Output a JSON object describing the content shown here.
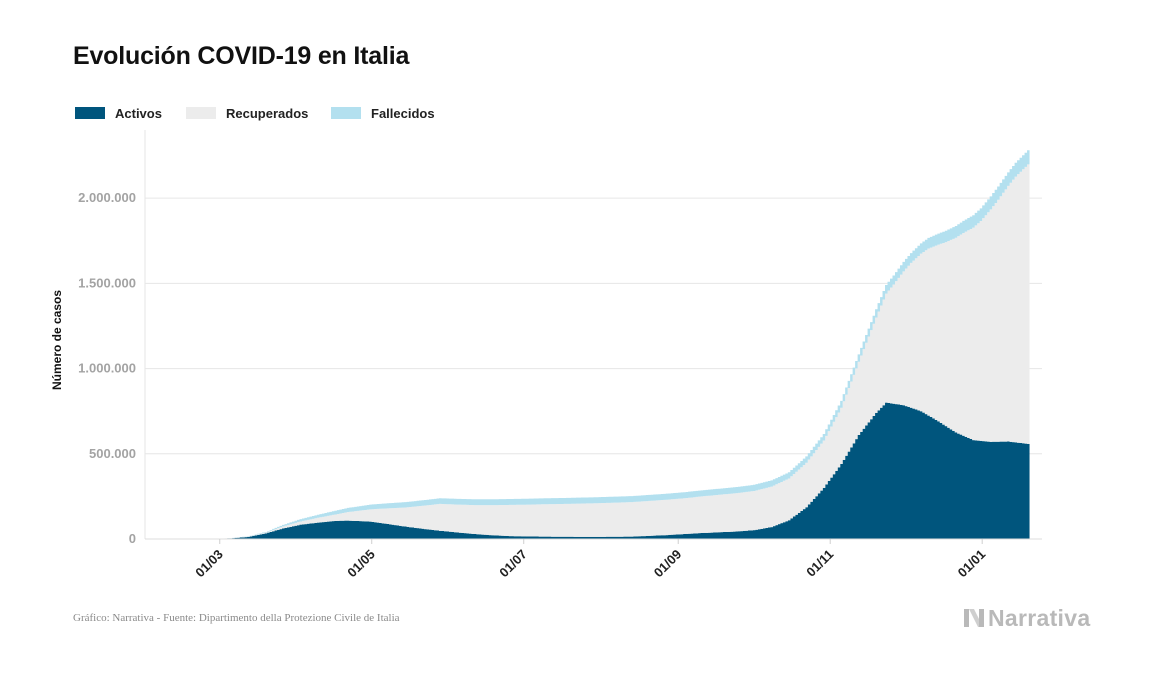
{
  "title": "Evolución COVID-19 en Italia",
  "legend": [
    {
      "label": "Activos",
      "color": "#00557d"
    },
    {
      "label": "Recuperados",
      "color": "#ececec"
    },
    {
      "label": "Fallecidos",
      "color": "#b3e0ef"
    }
  ],
  "footer": "Gráfico: Narrativa - Fuente: Dipartimento della Protezione Civile de Italia",
  "logo_text": "Narrativa",
  "chart_data": {
    "type": "area",
    "stacked": true,
    "ylabel": "Número de casos",
    "ylim": [
      0,
      2400000
    ],
    "yticks": [
      0,
      500000,
      1000000,
      1500000,
      2000000
    ],
    "ytick_labels": [
      "0",
      "500.000",
      "1.000.000",
      "1.500.000",
      "2.000.000"
    ],
    "xlim": [
      "2020-01-31",
      "2021-01-25"
    ],
    "xticks": [
      "2020-03-01",
      "2020-05-01",
      "2020-07-01",
      "2020-09-01",
      "2020-11-01",
      "2021-01-01"
    ],
    "xtick_labels": [
      "01/03",
      "01/05",
      "01/07",
      "01/09",
      "01/11",
      "01/01"
    ],
    "legend_position": "top-left",
    "grid": true,
    "series": [
      {
        "name": "Activos",
        "color": "#00557d",
        "points": [
          [
            "2020-02-20",
            0
          ],
          [
            "2020-02-27",
            1000
          ],
          [
            "2020-03-05",
            4000
          ],
          [
            "2020-03-12",
            12000
          ],
          [
            "2020-03-19",
            33000
          ],
          [
            "2020-03-26",
            62000
          ],
          [
            "2020-04-02",
            84000
          ],
          [
            "2020-04-09",
            96000
          ],
          [
            "2020-04-16",
            106000
          ],
          [
            "2020-04-21",
            108000
          ],
          [
            "2020-04-30",
            102000
          ],
          [
            "2020-05-07",
            88000
          ],
          [
            "2020-05-14",
            73000
          ],
          [
            "2020-05-21",
            60000
          ],
          [
            "2020-05-28",
            48000
          ],
          [
            "2020-06-04",
            38000
          ],
          [
            "2020-06-11",
            29000
          ],
          [
            "2020-06-18",
            22000
          ],
          [
            "2020-06-25",
            17000
          ],
          [
            "2020-07-02",
            15000
          ],
          [
            "2020-07-16",
            13000
          ],
          [
            "2020-07-30",
            12500
          ],
          [
            "2020-08-13",
            14000
          ],
          [
            "2020-08-27",
            23000
          ],
          [
            "2020-09-10",
            35000
          ],
          [
            "2020-09-24",
            44000
          ],
          [
            "2020-10-01",
            52000
          ],
          [
            "2020-10-08",
            70000
          ],
          [
            "2020-10-15",
            110000
          ],
          [
            "2020-10-22",
            186000
          ],
          [
            "2020-10-29",
            300000
          ],
          [
            "2020-11-05",
            440000
          ],
          [
            "2020-11-12",
            610000
          ],
          [
            "2020-11-19",
            740000
          ],
          [
            "2020-11-23",
            800000
          ],
          [
            "2020-11-30",
            785000
          ],
          [
            "2020-12-07",
            750000
          ],
          [
            "2020-12-14",
            690000
          ],
          [
            "2020-12-21",
            625000
          ],
          [
            "2020-12-28",
            580000
          ],
          [
            "2021-01-04",
            570000
          ],
          [
            "2021-01-11",
            572000
          ],
          [
            "2021-01-19",
            558000
          ]
        ]
      },
      {
        "name": "Recuperados",
        "color": "#ececec",
        "points": [
          [
            "2020-02-20",
            0
          ],
          [
            "2020-03-05",
            500
          ],
          [
            "2020-03-19",
            5000
          ],
          [
            "2020-04-02",
            19000
          ],
          [
            "2020-04-16",
            38000
          ],
          [
            "2020-04-30",
            72000
          ],
          [
            "2020-05-14",
            112000
          ],
          [
            "2020-05-28",
            158000
          ],
          [
            "2020-06-11",
            170000
          ],
          [
            "2020-06-25",
            183000
          ],
          [
            "2020-07-09",
            190000
          ],
          [
            "2020-07-23",
            195000
          ],
          [
            "2020-08-06",
            200000
          ],
          [
            "2020-08-20",
            205000
          ],
          [
            "2020-09-03",
            210000
          ],
          [
            "2020-09-17",
            220000
          ],
          [
            "2020-10-01",
            230000
          ],
          [
            "2020-10-15",
            245000
          ],
          [
            "2020-10-29",
            278000
          ],
          [
            "2020-11-05",
            330000
          ],
          [
            "2020-11-12",
            430000
          ],
          [
            "2020-11-19",
            560000
          ],
          [
            "2020-11-26",
            700000
          ],
          [
            "2020-12-03",
            850000
          ],
          [
            "2020-12-10",
            980000
          ],
          [
            "2020-12-17",
            1080000
          ],
          [
            "2020-12-24",
            1190000
          ],
          [
            "2020-12-31",
            1290000
          ],
          [
            "2021-01-07",
            1420000
          ],
          [
            "2021-01-14",
            1560000
          ],
          [
            "2021-01-19",
            1640000
          ]
        ]
      },
      {
        "name": "Fallecidos",
        "color": "#b3e0ef",
        "points": [
          [
            "2020-02-20",
            0
          ],
          [
            "2020-03-05",
            150
          ],
          [
            "2020-03-19",
            3400
          ],
          [
            "2020-04-02",
            13900
          ],
          [
            "2020-04-16",
            22100
          ],
          [
            "2020-04-30",
            27900
          ],
          [
            "2020-05-14",
            31400
          ],
          [
            "2020-05-28",
            33100
          ],
          [
            "2020-06-11",
            34200
          ],
          [
            "2020-06-25",
            34700
          ],
          [
            "2020-07-23",
            35100
          ],
          [
            "2020-08-20",
            35400
          ],
          [
            "2020-09-17",
            35700
          ],
          [
            "2020-10-15",
            36400
          ],
          [
            "2020-10-29",
            38100
          ],
          [
            "2020-11-12",
            43600
          ],
          [
            "2020-11-26",
            52800
          ],
          [
            "2020-12-10",
            62600
          ],
          [
            "2020-12-24",
            70900
          ],
          [
            "2021-01-07",
            77900
          ],
          [
            "2021-01-19",
            83200
          ]
        ]
      }
    ]
  }
}
